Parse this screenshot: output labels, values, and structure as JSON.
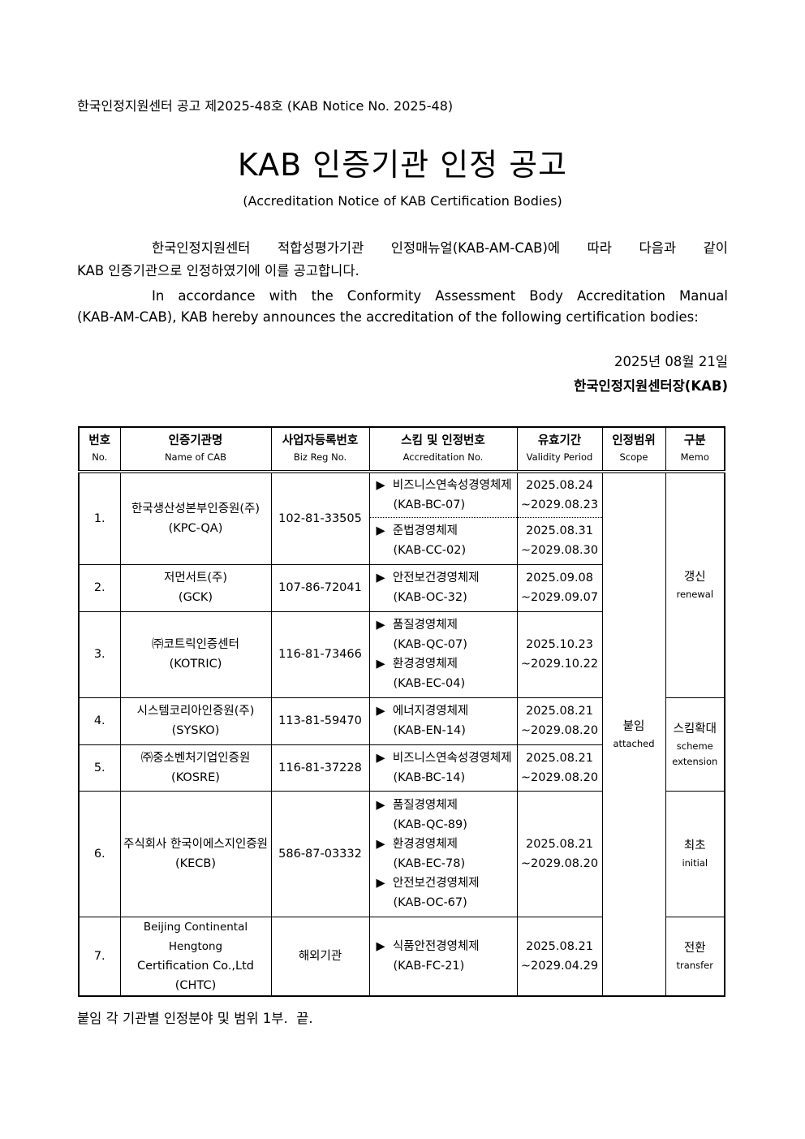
{
  "notice_number": "한국인정지원센터 공고 제2025-48호 (KAB Notice No. 2025-48)",
  "title": "KAB 인증기관 인정 공고",
  "subtitle": "(Accreditation Notice of KAB Certification Bodies)",
  "para_ko": [
    "한국인정지원센터 적합성평가기관 인정매뉴얼(KAB-AM-CAB)에 따라 다음과 같이",
    "KAB 인증기관으로 인정하였기에 이를 공고합니다."
  ],
  "para_en": [
    "In accordance with the Conformity Assessment Body Accreditation Manual",
    "(KAB-AM-CAB), KAB hereby announces the accreditation of the following certification bodies:"
  ],
  "date": "2025년 08월 21일",
  "issuer": "한국인정지원센터장(KAB)",
  "table": {
    "headers": [
      {
        "ko": "번호",
        "en": "No."
      },
      {
        "ko": "인증기관명",
        "en": "Name of CAB"
      },
      {
        "ko": "사업자등록번호",
        "en": "Biz Reg No."
      },
      {
        "ko": "스킴 및 인정번호",
        "en": "Accreditation No."
      },
      {
        "ko": "유효기간",
        "en": "Validity Period"
      },
      {
        "ko": "인정범위",
        "en": "Scope"
      },
      {
        "ko": "구분",
        "en": "Memo"
      }
    ],
    "rows": [
      {
        "no": "1.",
        "name": "한국생산성본부인증원(주)",
        "abbr": "(KPC-QA)",
        "reg": "102-81-33505",
        "schemes": [
          {
            "name": "비즈니스연속성경영체제",
            "code": "(KAB-BC-07)",
            "from": "2025.08.24",
            "to": "~2029.08.23"
          },
          {
            "name": "준법경영체제",
            "code": "(KAB-CC-02)",
            "from": "2025.08.31",
            "to": "~2029.08.30"
          }
        ]
      },
      {
        "no": "2.",
        "name": "저먼서트(주)",
        "abbr": "(GCK)",
        "reg": "107-86-72041",
        "schemes": [
          {
            "name": "안전보건경영체제",
            "code": "(KAB-OC-32)"
          }
        ],
        "from": "2025.09.08",
        "to": "~2029.09.07"
      },
      {
        "no": "3.",
        "name": "㈜코트릭인증센터",
        "abbr": "(KOTRIC)",
        "reg": "116-81-73466",
        "schemes": [
          {
            "name": "품질경영체제",
            "code": "(KAB-QC-07)"
          },
          {
            "name": "환경경영체제",
            "code": "(KAB-EC-04)"
          }
        ],
        "from": "2025.10.23",
        "to": "~2029.10.22"
      },
      {
        "no": "4.",
        "name": "시스템코리아인증원(주)",
        "abbr": "(SYSKO)",
        "reg": "113-81-59470",
        "schemes": [
          {
            "name": "에너지경영체제",
            "code": "(KAB-EN-14)"
          }
        ],
        "from": "2025.08.21",
        "to": "~2029.08.20"
      },
      {
        "no": "5.",
        "name": "㈜중소벤처기업인증원",
        "abbr": "(KOSRE)",
        "reg": "116-81-37228",
        "schemes": [
          {
            "name": "비즈니스연속성경영체제",
            "code": "(KAB-BC-14)"
          }
        ],
        "from": "2025.08.21",
        "to": "~2029.08.20"
      },
      {
        "no": "6.",
        "name": "주식회사 한국이에스지인증원",
        "abbr": "(KECB)",
        "reg": "586-87-03332",
        "schemes": [
          {
            "name": "품질경영체제",
            "code": "(KAB-QC-89)"
          },
          {
            "name": "환경경영체제",
            "code": "(KAB-EC-78)"
          },
          {
            "name": "안전보건경영체제",
            "code": "(KAB-OC-67)"
          }
        ],
        "from": "2025.08.21",
        "to": "~2029.08.20"
      },
      {
        "no": "7.",
        "name_lines": [
          "Beijing Continental Hengtong",
          "Certification Co.,Ltd"
        ],
        "abbr": "(CHTC)",
        "reg": "해외기관",
        "schemes": [
          {
            "name": "식품안전경영체제",
            "code": "(KAB-FC-21)"
          }
        ],
        "from": "2025.08.21",
        "to": "~2029.04.29"
      }
    ],
    "scope": {
      "ko": "붙임",
      "en": "attached"
    },
    "memos": [
      {
        "ko": "갱신",
        "en": "renewal"
      },
      {
        "ko": "스킴확대",
        "en": "scheme extension"
      },
      {
        "ko": "최초",
        "en": "initial"
      },
      {
        "ko": "전환",
        "en": "transfer"
      }
    ],
    "bullet_icon": "black-right-pointing-triangle"
  },
  "footer": "붙임 각 기관별 인정분야 및 범위 1부.  끝."
}
